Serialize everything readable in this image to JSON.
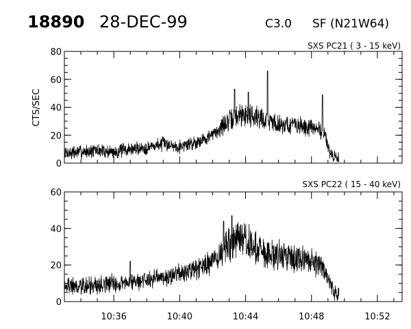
{
  "header": {
    "event_id": "18890",
    "date": "28-DEC-99",
    "class": "C3.0",
    "location": "SF (N21W64)"
  },
  "chart_data": [
    {
      "type": "line",
      "title": "SXS PC21  (  3 - 15 keV)",
      "ylabel": "CTS/SEC",
      "xlabel": "",
      "xlim": [
        "10:33:00",
        "10:53:30"
      ],
      "ylim": [
        0,
        80
      ],
      "y_ticks": [
        0,
        20,
        40,
        60,
        80
      ],
      "x_ticks": [
        "10:36",
        "10:40",
        "10:44",
        "10:48",
        "10:52"
      ],
      "x_tick_labels_shown": false,
      "grid": false,
      "series": [
        {
          "x": [
            "10:33:00",
            "10:34:00",
            "10:35:00",
            "10:36:00",
            "10:37:00",
            "10:38:00",
            "10:39:00",
            "10:39:30",
            "10:40:00",
            "10:41:00",
            "10:42:00",
            "10:42:30",
            "10:43:00",
            "10:43:30",
            "10:44:00",
            "10:44:30",
            "10:45:00",
            "10:45:30",
            "10:46:00",
            "10:47:00",
            "10:48:00",
            "10:48:30",
            "10:48:50",
            "10:49:00",
            "10:49:20",
            "10:49:40"
          ],
          "values": [
            7,
            8,
            9,
            8,
            10,
            11,
            14,
            13,
            12,
            15,
            20,
            26,
            30,
            34,
            35,
            34,
            32,
            30,
            28,
            27,
            25,
            24,
            22,
            10,
            4,
            3
          ]
        }
      ]
    },
    {
      "type": "line",
      "title": "SXS PC22  ( 15 - 40 keV)",
      "ylabel": "",
      "xlabel": "",
      "xlim": [
        "10:33:00",
        "10:53:30"
      ],
      "ylim": [
        0,
        60
      ],
      "y_ticks": [
        0,
        20,
        40,
        60
      ],
      "x_ticks": [
        "10:36",
        "10:40",
        "10:44",
        "10:48",
        "10:52"
      ],
      "grid": false,
      "series": [
        {
          "x": [
            "10:33:00",
            "10:34:00",
            "10:35:00",
            "10:36:00",
            "10:37:00",
            "10:38:00",
            "10:39:00",
            "10:40:00",
            "10:41:00",
            "10:42:00",
            "10:42:30",
            "10:43:00",
            "10:43:30",
            "10:44:00",
            "10:44:30",
            "10:45:00",
            "10:45:30",
            "10:46:00",
            "10:47:00",
            "10:48:00",
            "10:48:30",
            "10:49:00",
            "10:49:20",
            "10:49:40"
          ],
          "values": [
            9,
            8,
            9,
            10,
            11,
            12,
            13,
            15,
            17,
            22,
            27,
            31,
            33,
            32,
            30,
            28,
            27,
            26,
            24,
            22,
            20,
            12,
            6,
            4
          ]
        }
      ]
    }
  ]
}
